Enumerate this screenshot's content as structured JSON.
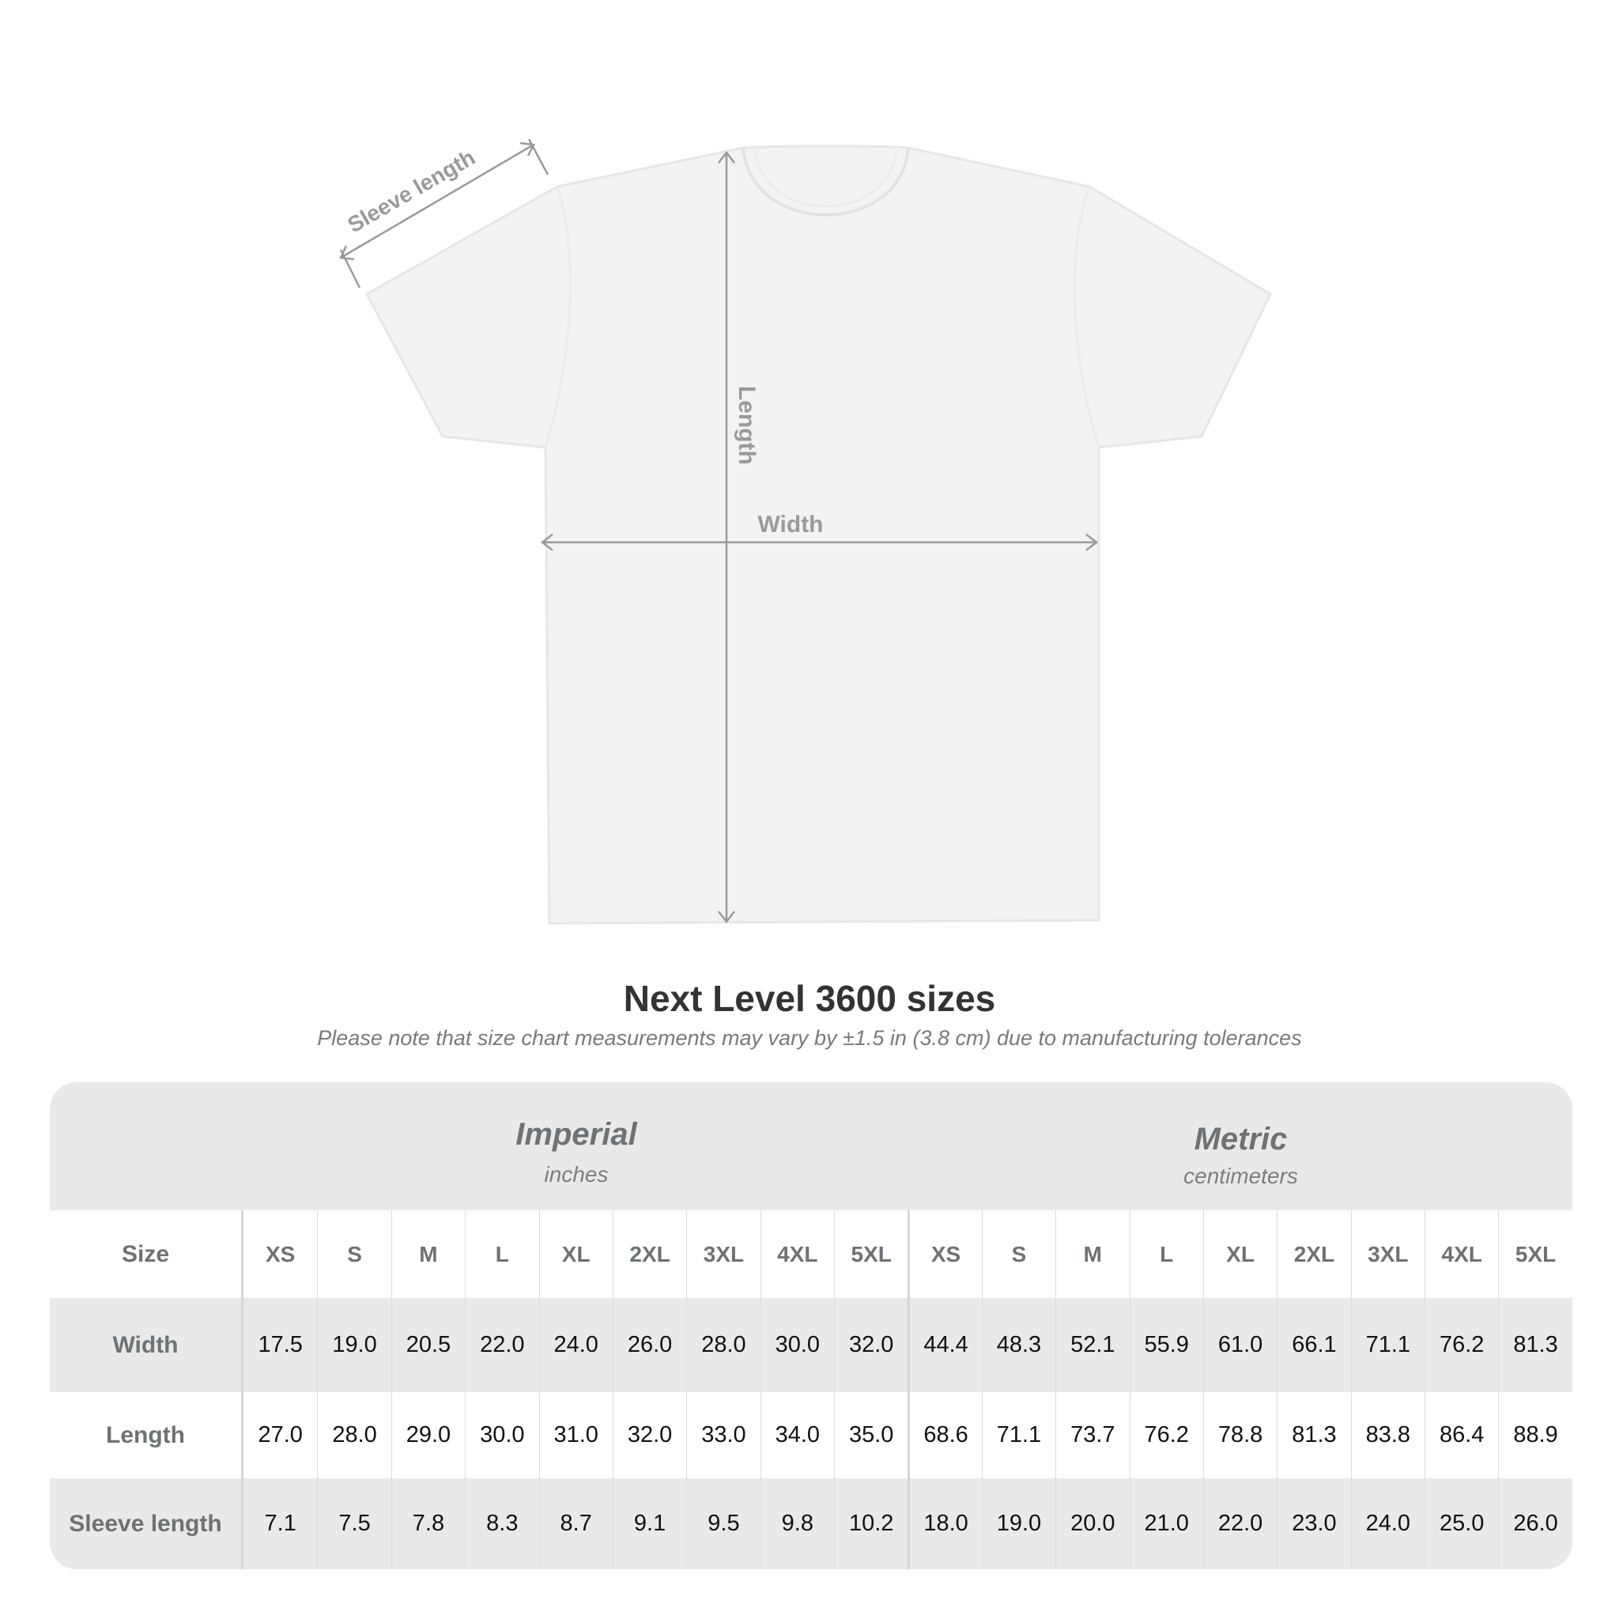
{
  "diagram": {
    "labels": {
      "sleeve": "Sleeve length",
      "length": "Length",
      "width": "Width"
    },
    "line_color": "#9a9a9a"
  },
  "title": "Next Level 3600 sizes",
  "subtitle": "Please note that size chart measurements may vary by ±1.5 in (3.8 cm) due to manufacturing tolerances",
  "table": {
    "imperial": {
      "label": "Imperial",
      "unit": "inches"
    },
    "metric": {
      "label": "Metric",
      "unit": "centimeters"
    },
    "size_label": "Size",
    "sizes": [
      "XS",
      "S",
      "M",
      "L",
      "XL",
      "2XL",
      "3XL",
      "4XL",
      "5XL"
    ],
    "rows": [
      {
        "label": "Width",
        "imperial": [
          "17.5",
          "19.0",
          "20.5",
          "22.0",
          "24.0",
          "26.0",
          "28.0",
          "30.0",
          "32.0"
        ],
        "metric": [
          "44.4",
          "48.3",
          "52.1",
          "55.9",
          "61.0",
          "66.1",
          "71.1",
          "76.2",
          "81.3"
        ]
      },
      {
        "label": "Length",
        "imperial": [
          "27.0",
          "28.0",
          "29.0",
          "30.0",
          "31.0",
          "32.0",
          "33.0",
          "34.0",
          "35.0"
        ],
        "metric": [
          "68.6",
          "71.1",
          "73.7",
          "76.2",
          "78.8",
          "81.3",
          "83.8",
          "86.4",
          "88.9"
        ]
      },
      {
        "label": "Sleeve length",
        "imperial": [
          "7.1",
          "7.5",
          "7.8",
          "8.3",
          "8.7",
          "9.1",
          "9.5",
          "9.8",
          "10.2"
        ],
        "metric": [
          "18.0",
          "19.0",
          "20.0",
          "21.0",
          "22.0",
          "23.0",
          "24.0",
          "25.0",
          "26.0"
        ]
      }
    ]
  }
}
